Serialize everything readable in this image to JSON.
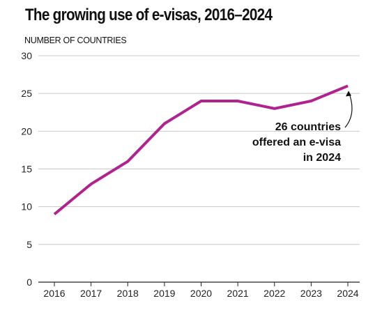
{
  "chart_data": {
    "type": "line",
    "title": "The growing use of e-visas, 2016–2024",
    "ylabel": "NUMBER OF COUNTRIES",
    "xlabel": "",
    "x": [
      "2016",
      "2017",
      "2018",
      "2019",
      "2020",
      "2021",
      "2022",
      "2023",
      "2024"
    ],
    "series": [
      {
        "values": [
          9,
          13,
          16,
          21,
          24,
          24,
          23,
          24,
          26
        ]
      }
    ],
    "ylim": [
      0,
      30
    ],
    "yticks": [
      0,
      5,
      10,
      15,
      20,
      25,
      30
    ],
    "grid": "horizontal",
    "annotation": {
      "lines": [
        "26 countries",
        "offered an e-visa",
        "in 2024"
      ],
      "target": {
        "x": "2024",
        "y": 26
      }
    }
  },
  "colors": {
    "series": "#b0238f",
    "grid": "#c8c8c8",
    "axis": "#222222"
  }
}
